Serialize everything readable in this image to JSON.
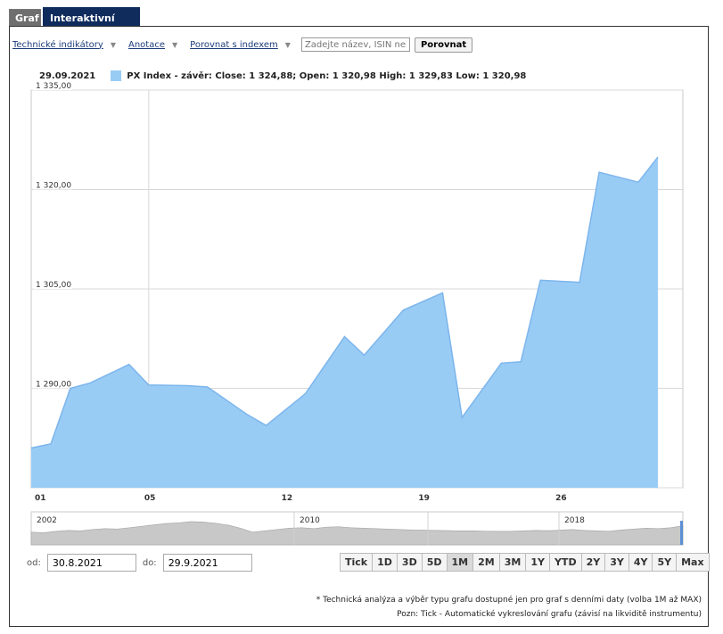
{
  "tabs": [
    {
      "label": "Graf"
    },
    {
      "label": "Interaktivní graf"
    }
  ],
  "toolbar": {
    "indicators_label": "Technické indikátory",
    "annotations_label": "Anotace",
    "compare_index_label": "Porovnat s indexem",
    "compare_placeholder": "Zadejte název, ISIN nebo",
    "compare_button": "Porovnat"
  },
  "legend": {
    "date": "29.09.2021",
    "text": "PX Index - závěr: Close: 1 324,88; Open: 1 320,98 High: 1 329,83 Low: 1 320,98",
    "color": "#99ccf5"
  },
  "chart_data": [
    {
      "type": "area",
      "series": [
        {
          "name": "PX Index - závěr",
          "values": [
            1281.0,
            1281.6,
            1290.0,
            1290.8,
            1293.6,
            1290.5,
            1290.4,
            1290.2,
            1286.1,
            1284.4,
            1289.2,
            1297.8,
            1295.0,
            1301.8,
            1304.4,
            1285.6,
            1293.8,
            1294.0,
            1306.3,
            1306.0,
            1322.6,
            1321.1,
            1324.9
          ]
        }
      ],
      "x": [
        "30.8.",
        "31.8.",
        "1.9.",
        "2.9.",
        "3.9.",
        "6.9.",
        "7.9.",
        "8.9.",
        "9.9.",
        "10.9.",
        "13.9.",
        "14.9.",
        "15.9.",
        "16.9.",
        "17.9.",
        "20.9.",
        "21.9.",
        "22.9.",
        "23.9.",
        "24.9.",
        "27.9.",
        "28.9.",
        "29.9."
      ],
      "x_offsets_days": [
        0,
        1,
        2,
        3,
        5,
        6,
        8,
        9,
        11,
        12,
        14,
        16,
        17,
        19,
        21,
        22,
        24,
        25,
        26,
        28,
        29,
        31,
        32
      ],
      "ylim": [
        1275,
        1335
      ],
      "yticks": [
        "1 275,00",
        "1 290,00",
        "1 305,00",
        "1 320,00",
        "1 335,00"
      ],
      "ytick_values": [
        1275,
        1290,
        1305,
        1320,
        1335
      ],
      "xticks": [
        "01",
        "05",
        "12",
        "19",
        "26"
      ],
      "xtick_offsets_days": [
        2,
        6,
        13,
        20,
        27
      ],
      "grid": true,
      "fill_color": "#99ccf5",
      "line_color": "#7cb5ec"
    },
    {
      "type": "area",
      "series": [
        {
          "name": "navigator",
          "values": [
            0.55,
            0.52,
            0.58,
            0.62,
            0.6,
            0.66,
            0.7,
            0.68,
            0.74,
            0.8,
            0.86,
            0.92,
            0.95,
            1.0,
            0.98,
            0.93,
            0.85,
            0.72,
            0.55,
            0.6,
            0.66,
            0.72,
            0.74,
            0.7,
            0.76,
            0.78,
            0.74,
            0.72,
            0.7,
            0.68,
            0.66,
            0.64,
            0.63,
            0.62,
            0.61,
            0.6,
            0.6,
            0.59,
            0.58,
            0.58,
            0.6,
            0.62,
            0.61,
            0.63,
            0.66,
            0.62,
            0.6,
            0.58,
            0.64,
            0.68,
            0.72,
            0.7,
            0.74,
            0.82
          ]
        }
      ],
      "xticks": [
        "2002",
        "2010",
        "2018"
      ],
      "fill_color": "#c8c8c8"
    }
  ],
  "range": {
    "from_label": "od:",
    "from_value": "30.8.2021",
    "to_label": "do:",
    "to_value": "29.9.2021",
    "buttons": [
      "Tick",
      "1D",
      "3D",
      "5D",
      "1M",
      "2M",
      "3M",
      "1Y",
      "YTD",
      "2Y",
      "3Y",
      "4Y",
      "5Y",
      "Max"
    ],
    "active": "1M"
  },
  "notes": {
    "line1": "* Technická analýza a výběr typu grafu dostupné jen pro graf s denními daty (volba 1M až MAX)",
    "line2": "Pozn: Tick - Automatické vykreslování grafu (závisí na likviditě instrumentu)"
  }
}
